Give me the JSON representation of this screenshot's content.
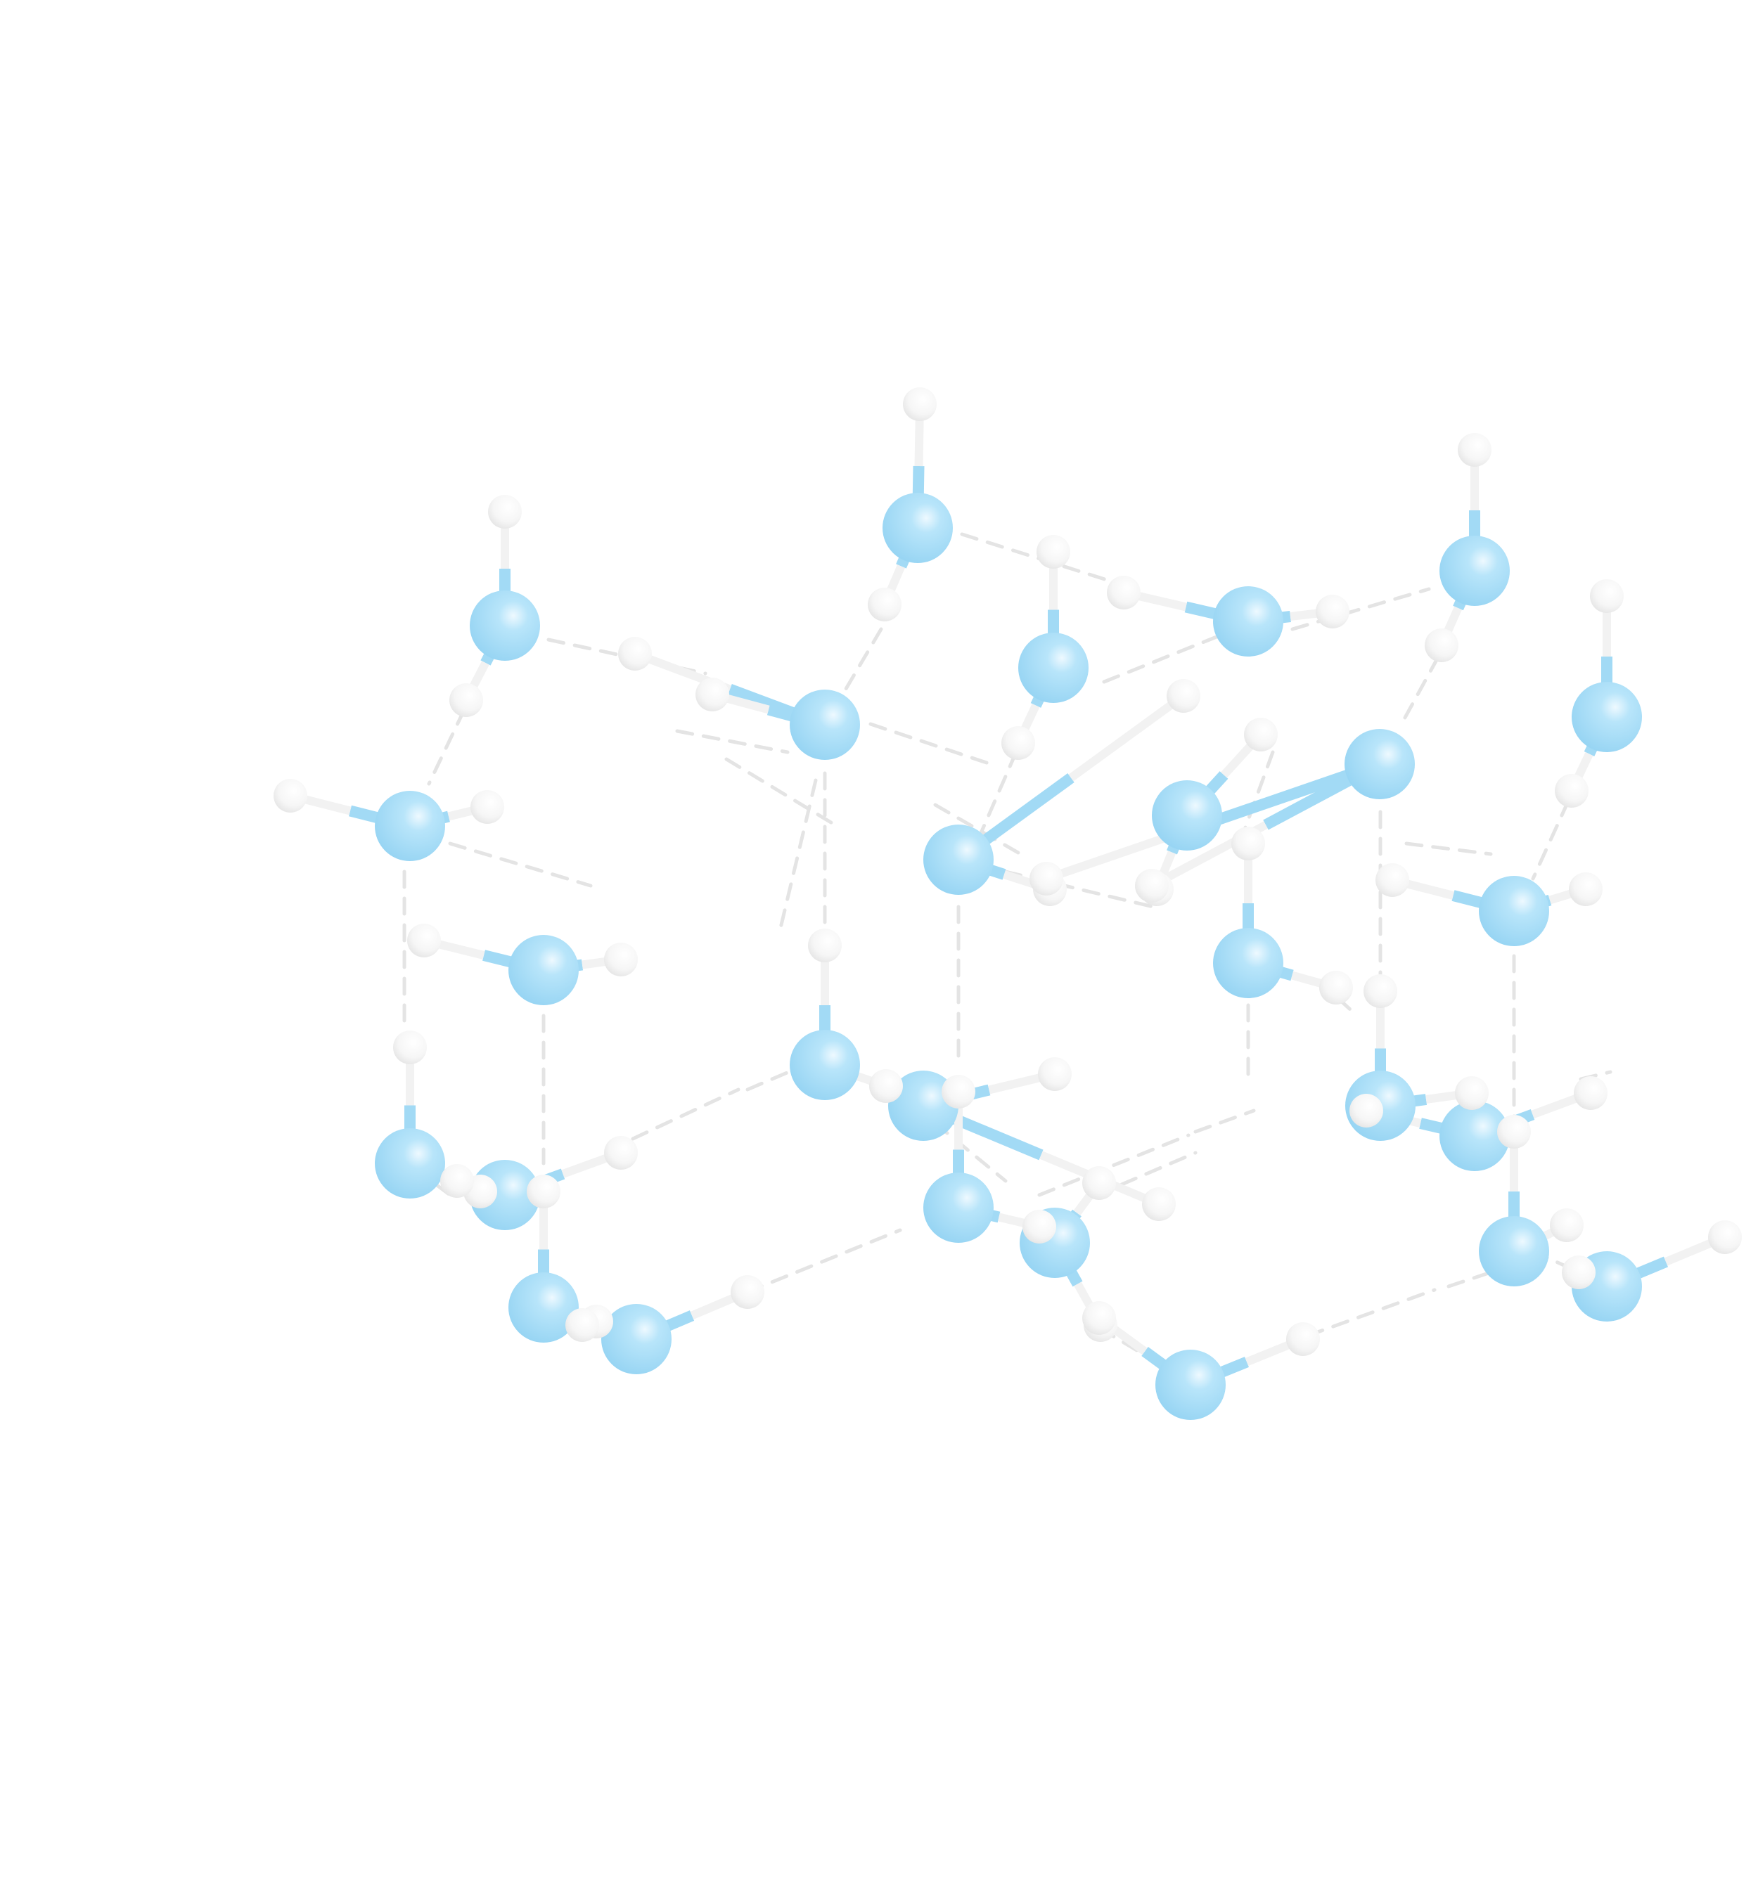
{
  "diagram": {
    "subject": "ice-ih-lattice",
    "colors": {
      "oxygen": "#a9def7",
      "oxygen_highlight": "#e8f7fe",
      "oxygen_shade": "#8fcfef",
      "hydrogen": "#f8f8f8",
      "hydrogen_shade": "#dcdcdc",
      "bond_oxygen": "#a2daf5",
      "bond_hydrogen": "#f2f2f2",
      "hydrogen_bond_line": "#e4e4e4"
    }
  }
}
